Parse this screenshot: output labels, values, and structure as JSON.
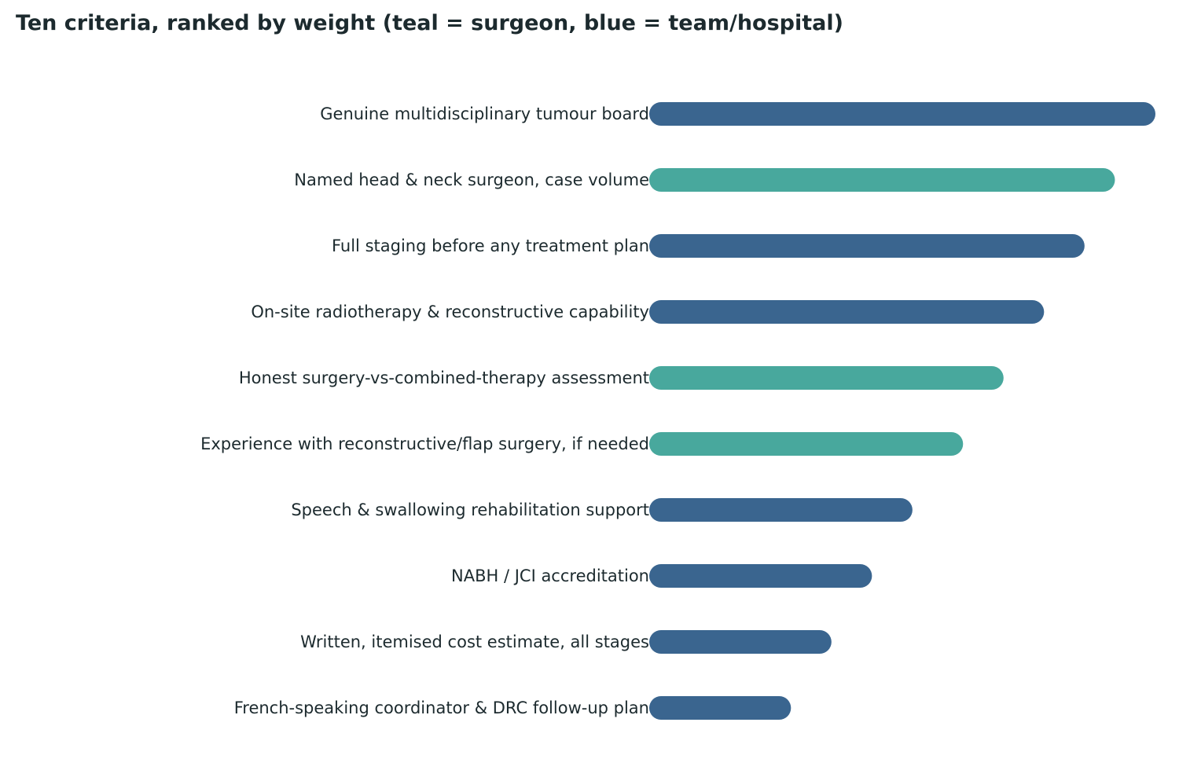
{
  "chart_data": {
    "type": "bar",
    "orientation": "horizontal",
    "title": "Ten criteria, ranked by weight (teal = surgeon, blue = team/hospital)",
    "categories": [
      "Genuine multidisciplinary tumour board",
      "Named head & neck surgeon, case volume",
      "Full staging before any treatment plan",
      "On-site radiotherapy & reconstructive capability",
      "Honest surgery-vs-combined-therapy assessment",
      "Experience with reconstructive/flap surgery, if needed",
      "Speech & swallowing rehabilitation support",
      "NABH / JCI accreditation",
      "Written, itemised cost estimate, all stages",
      "French-speaking coordinator & DRC follow-up plan"
    ],
    "values": [
      10,
      9.2,
      8.6,
      7.8,
      7.0,
      6.2,
      5.2,
      4.4,
      3.6,
      2.8
    ],
    "group": [
      "team/hospital",
      "surgeon",
      "team/hospital",
      "team/hospital",
      "surgeon",
      "surgeon",
      "team/hospital",
      "team/hospital",
      "team/hospital",
      "team/hospital"
    ],
    "colors": {
      "surgeon": "#48a89d",
      "team/hospital": "#3a658f"
    },
    "xlim": [
      0,
      10
    ],
    "grid": false,
    "xlabel": "",
    "ylabel": ""
  }
}
